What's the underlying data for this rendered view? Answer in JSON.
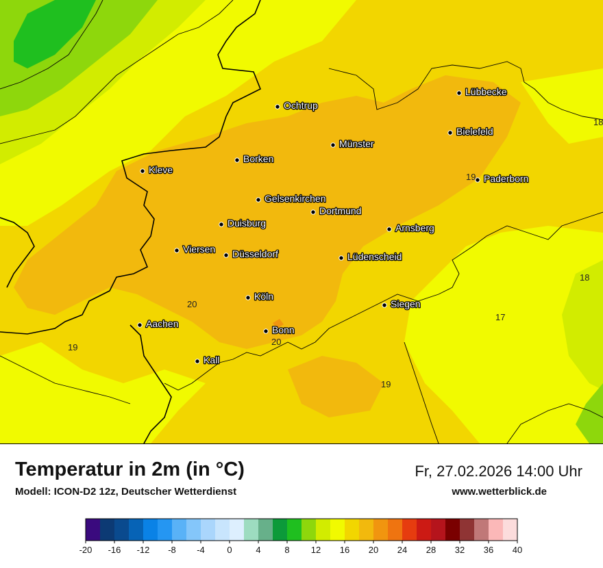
{
  "header": {
    "title": "Temperatur in 2m (in °C)",
    "model": "Modell: ICON-D2 12z, Deutscher Wetterdienst",
    "datetime": "Fr, 27.02.2026 14:00 Uhr",
    "website": "www.wetterblick.de"
  },
  "cities": [
    {
      "name": "Lübbecke"
    },
    {
      "name": "Ochtrup"
    },
    {
      "name": "Bielefeld"
    },
    {
      "name": "Münster"
    },
    {
      "name": "Borken"
    },
    {
      "name": "Kleve"
    },
    {
      "name": "Paderborn"
    },
    {
      "name": "Gelsenkirchen"
    },
    {
      "name": "Dortmund"
    },
    {
      "name": "Duisburg"
    },
    {
      "name": "Arnsberg"
    },
    {
      "name": "Viersen"
    },
    {
      "name": "Düsseldorf"
    },
    {
      "name": "Lüdenscheid"
    },
    {
      "name": "Köln"
    },
    {
      "name": "Siegen"
    },
    {
      "name": "Aachen"
    },
    {
      "name": "Bonn"
    },
    {
      "name": "Kall"
    }
  ],
  "isotherm_labels": [
    "18",
    "19",
    "18",
    "17",
    "20",
    "20",
    "19",
    "19"
  ],
  "legend": {
    "unit": "°C",
    "ticks": [
      "-20",
      "-16",
      "-12",
      "-8",
      "-4",
      "0",
      "4",
      "8",
      "12",
      "16",
      "20",
      "24",
      "28",
      "32",
      "36",
      "40"
    ],
    "colors": [
      "#3a0a7e",
      "#0c3a74",
      "#0a4a8e",
      "#0663b6",
      "#0a82e6",
      "#2596f2",
      "#59b2f7",
      "#84c6fa",
      "#aad6fc",
      "#c8e5fd",
      "#ddeffe",
      "#9ddcc0",
      "#67b08a",
      "#0c9a3a",
      "#1fbf1f",
      "#8ed70c",
      "#d2ec00",
      "#f1fa00",
      "#f2d600",
      "#f2b90d",
      "#f1950f",
      "#ef7410",
      "#e63c0f",
      "#cc1a14",
      "#b5141c",
      "#7a0000",
      "#8f3434",
      "#c07878",
      "#fbb8b8",
      "#fcdcdc"
    ]
  }
}
